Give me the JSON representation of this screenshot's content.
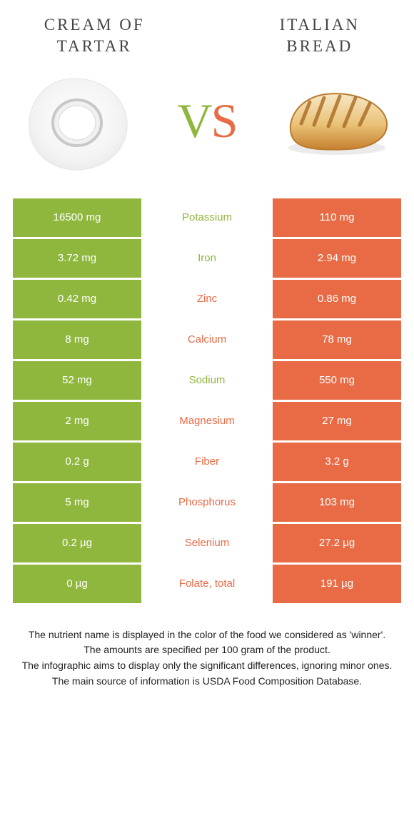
{
  "colors": {
    "green": "#8fb73e",
    "orange": "#e86b46",
    "text": "#333333",
    "white": "#ffffff",
    "bg": "#ffffff"
  },
  "header": {
    "left_title_l1": "CREAM OF",
    "left_title_l2": "TARTAR",
    "right_title_l1": "ITALIAN",
    "right_title_l2": "BREAD"
  },
  "vs": {
    "v": "V",
    "s": "S"
  },
  "rows": [
    {
      "left": "16500 mg",
      "name": "Potassium",
      "right": "110 mg",
      "winner": "left"
    },
    {
      "left": "3.72 mg",
      "name": "Iron",
      "right": "2.94 mg",
      "winner": "left"
    },
    {
      "left": "0.42 mg",
      "name": "Zinc",
      "right": "0.86 mg",
      "winner": "right"
    },
    {
      "left": "8 mg",
      "name": "Calcium",
      "right": "78 mg",
      "winner": "right"
    },
    {
      "left": "52 mg",
      "name": "Sodium",
      "right": "550 mg",
      "winner": "left"
    },
    {
      "left": "2 mg",
      "name": "Magnesium",
      "right": "27 mg",
      "winner": "right"
    },
    {
      "left": "0.2 g",
      "name": "Fiber",
      "right": "3.2 g",
      "winner": "right"
    },
    {
      "left": "5 mg",
      "name": "Phosphorus",
      "right": "103 mg",
      "winner": "right"
    },
    {
      "left": "0.2 µg",
      "name": "Selenium",
      "right": "27.2 µg",
      "winner": "right"
    },
    {
      "left": "0 µg",
      "name": "Folate, total",
      "right": "191 µg",
      "winner": "right"
    }
  ],
  "footer": {
    "l1": "The nutrient name is displayed in the color of the food we considered as 'winner'.",
    "l2": "The amounts are specified per 100 gram of the product.",
    "l3": "The infographic aims to display only the significant differences, ignoring minor ones.",
    "l4": "The main source of information is USDA Food Composition Database."
  },
  "icons": {
    "left": "cream-of-tartar",
    "right": "italian-bread"
  }
}
